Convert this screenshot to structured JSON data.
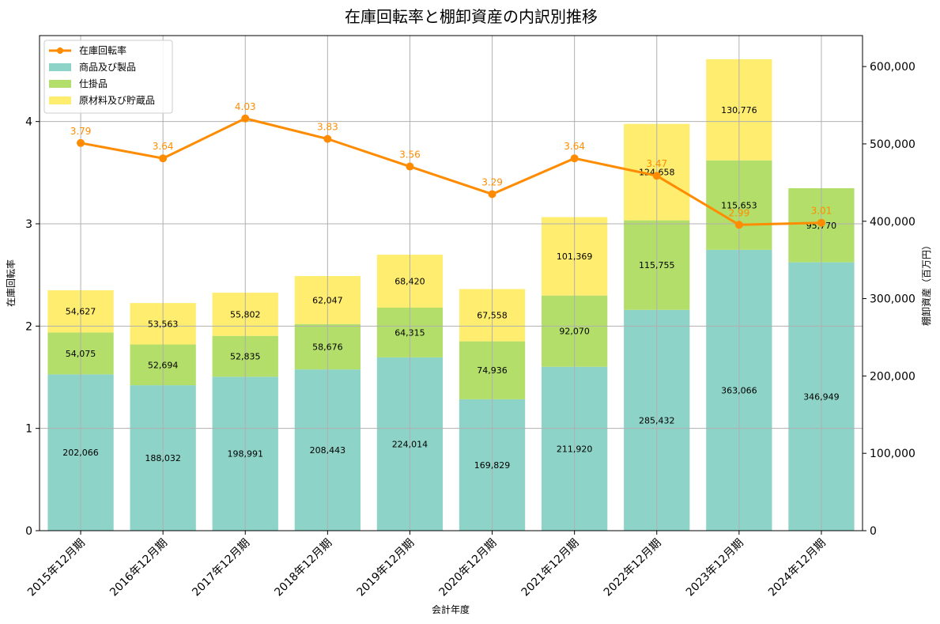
{
  "chart_data": {
    "type": "bar",
    "title": "在庫回転率と棚卸資産の内訳別推移",
    "xlabel": "会計年度",
    "ylabel_left": "在庫回転率",
    "ylabel_right": "棚卸資産（百万円）",
    "categories": [
      "2015年12月期",
      "2016年12月期",
      "2017年12月期",
      "2018年12月期",
      "2019年12月期",
      "2020年12月期",
      "2021年12月期",
      "2022年12月期",
      "2023年12月期",
      "2024年12月期"
    ],
    "stacked_series": [
      {
        "name": "商品及び製品",
        "color": "#8dd3c7",
        "values": [
          202066,
          188032,
          198991,
          208443,
          224014,
          169829,
          211920,
          285432,
          363066,
          346949
        ]
      },
      {
        "name": "仕掛品",
        "color": "#b3de69",
        "values": [
          54075,
          52694,
          52835,
          58676,
          64315,
          74936,
          92070,
          115755,
          115653,
          95770
        ]
      },
      {
        "name": "原材料及び貯蔵品",
        "color": "#ffed6f",
        "values": [
          54627,
          53563,
          55802,
          62047,
          68420,
          67558,
          101369,
          124658,
          130776,
          null
        ]
      }
    ],
    "line_series": {
      "name": "在庫回転率",
      "color": "#ff8c00",
      "values": [
        3.79,
        3.64,
        4.03,
        3.83,
        3.56,
        3.29,
        3.64,
        3.47,
        2.99,
        3.01
      ]
    },
    "ylim_left": [
      0,
      4.84
    ],
    "yticks_left": [
      0,
      1,
      2,
      3,
      4
    ],
    "ylim_right": [
      0,
      640000
    ],
    "yticks_right": [
      0,
      100000,
      200000,
      300000,
      400000,
      500000,
      600000
    ],
    "yticks_right_labels": [
      "0",
      "100,000",
      "200,000",
      "300,000",
      "400,000",
      "500,000",
      "600,000"
    ],
    "grid": true,
    "legend_position": "top-left"
  }
}
